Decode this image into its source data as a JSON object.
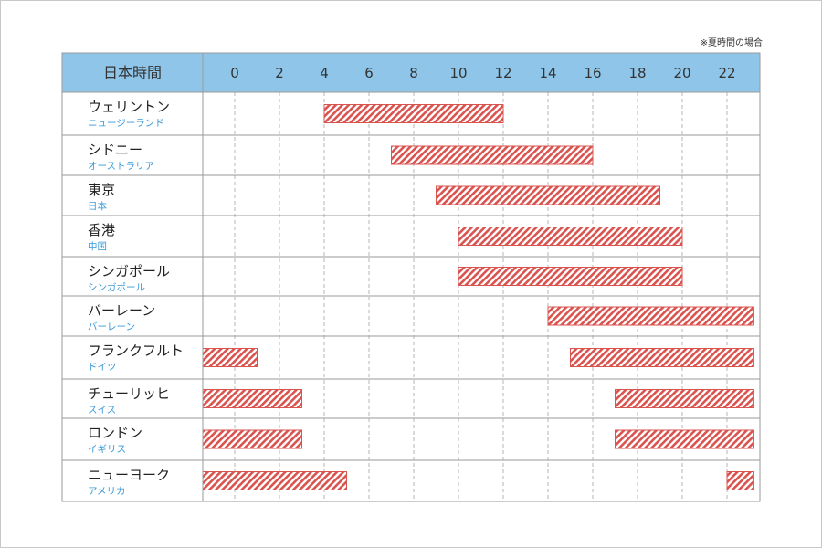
{
  "note": "※夏時間の場合",
  "header_label": "日本時間",
  "colors": {
    "header_bg": "#8ec5e8",
    "bar": "#d9534f",
    "sub_label": "#3a9ad9",
    "grid": "#b5b5b5"
  },
  "chart_data": {
    "type": "bar",
    "orientation": "horizontal-range",
    "x_axis_label": "日本時間",
    "xlim": [
      -1.5,
      23.2
    ],
    "x_ticks": [
      0,
      2,
      4,
      6,
      8,
      10,
      12,
      14,
      16,
      18,
      20,
      22
    ],
    "grid": "vertical dashed",
    "rows": [
      {
        "city": "ウェリントン",
        "country": "ニュージーランド",
        "ranges": [
          [
            4,
            12
          ]
        ]
      },
      {
        "city": "シドニー",
        "country": "オーストラリア",
        "ranges": [
          [
            7,
            16
          ]
        ]
      },
      {
        "city": "東京",
        "country": "日本",
        "ranges": [
          [
            9,
            19
          ]
        ]
      },
      {
        "city": "香港",
        "country": "中国",
        "ranges": [
          [
            10,
            20
          ]
        ]
      },
      {
        "city": "シンガポール",
        "country": "シンガポール",
        "ranges": [
          [
            10,
            20
          ]
        ]
      },
      {
        "city": "バーレーン",
        "country": "バーレーン",
        "ranges": [
          [
            14,
            23.2
          ]
        ]
      },
      {
        "city": "フランクフルト",
        "country": "ドイツ",
        "ranges": [
          [
            -1.5,
            1
          ]
        ],
        "ranges2": [
          [
            15,
            23.2
          ]
        ]
      },
      {
        "city": "チューリッヒ",
        "country": "スイス",
        "ranges": [
          [
            -1.5,
            3
          ]
        ],
        "ranges2": [
          [
            17,
            23.2
          ]
        ]
      },
      {
        "city": "ロンドン",
        "country": "イギリス",
        "ranges": [
          [
            -1.5,
            3
          ]
        ],
        "ranges2": [
          [
            17,
            23.2
          ]
        ]
      },
      {
        "city": "ニューヨーク",
        "country": "アメリカ",
        "ranges": [
          [
            -1.5,
            5
          ]
        ],
        "ranges2": [
          [
            22,
            23.2
          ]
        ]
      }
    ]
  }
}
